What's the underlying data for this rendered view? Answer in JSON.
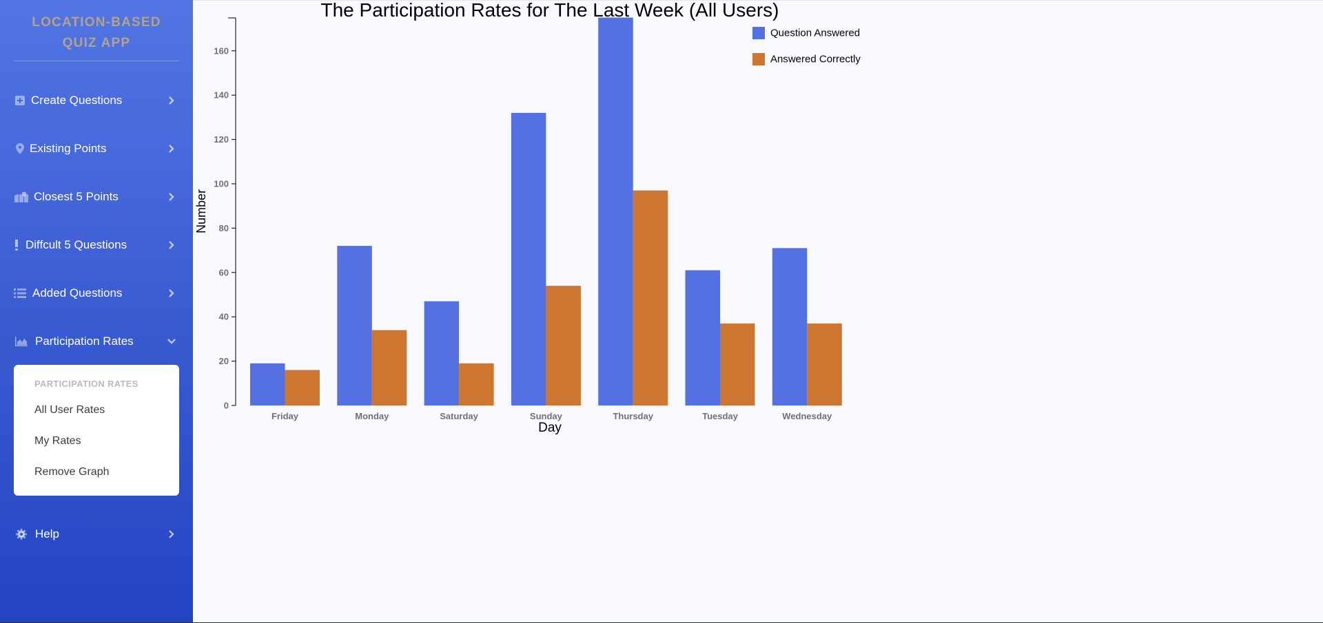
{
  "sidebar": {
    "brand": "LOCATION-BASED QUIZ APP",
    "items": [
      {
        "label": "Create Questions",
        "icon": "plus-square-icon"
      },
      {
        "label": "Existing Points",
        "icon": "map-marker-icon"
      },
      {
        "label": "Closest 5 Points",
        "icon": "map-icon"
      },
      {
        "label": "Diffcult 5 Questions",
        "icon": "exclamation-icon"
      },
      {
        "label": "Added Questions",
        "icon": "list-icon"
      },
      {
        "label": "Participation Rates",
        "icon": "area-chart-icon"
      },
      {
        "label": "Help",
        "icon": "gear-icon"
      }
    ],
    "submenu": {
      "header": "PARTICIPATION RATES",
      "items": [
        {
          "label": "All User Rates"
        },
        {
          "label": "My Rates"
        },
        {
          "label": "Remove Graph"
        }
      ]
    }
  },
  "chart_data": {
    "type": "bar",
    "title": "The Participation Rates for The Last Week (All Users)",
    "xlabel": "Day",
    "ylabel": "Number",
    "categories": [
      "Friday",
      "Monday",
      "Saturday",
      "Sunday",
      "Thursday",
      "Tuesday",
      "Wednesday"
    ],
    "series": [
      {
        "name": "Question Answered",
        "color": "#5570e0",
        "values": [
          19,
          72,
          47,
          132,
          175,
          61,
          71
        ]
      },
      {
        "name": "Answered Correctly",
        "color": "#cc7631",
        "values": [
          16,
          34,
          19,
          54,
          97,
          37,
          37
        ]
      }
    ],
    "yticks": [
      "0",
      "20",
      "40",
      "60",
      "80",
      "100",
      "120",
      "140",
      "160"
    ],
    "ylim": [
      0,
      175
    ],
    "legend_position": "top-right",
    "grid": false
  }
}
